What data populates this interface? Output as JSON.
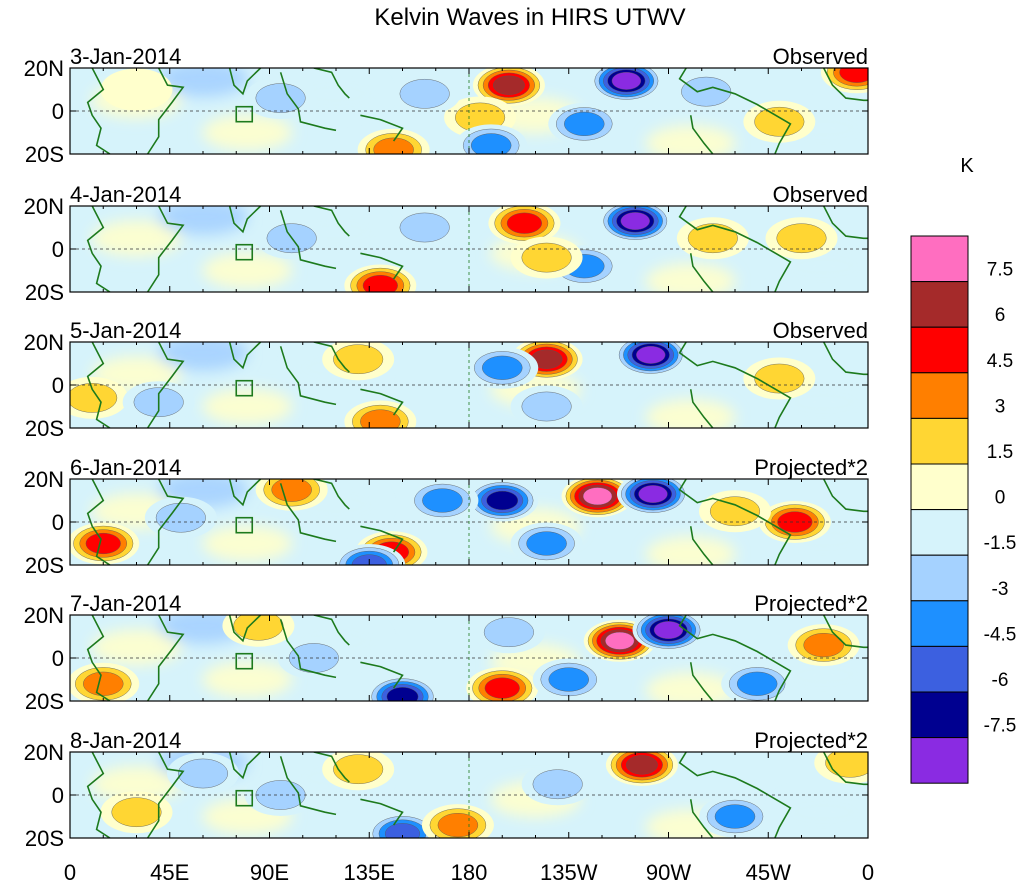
{
  "chart_data": {
    "type": "heatmap",
    "title": "Kelvin Waves in HIRS UTWV",
    "unit": "K",
    "x_ticks": [
      "0",
      "45E",
      "90E",
      "135E",
      "180",
      "135W",
      "90W",
      "45W",
      "0"
    ],
    "x_range_deg_east": [
      0,
      360
    ],
    "y_ticks": [
      "20N",
      "0",
      "20S"
    ],
    "y_range_deg": [
      -20,
      20
    ],
    "colorbar": {
      "labels": [
        "7.5",
        "6",
        "4.5",
        "3",
        "1.5",
        "0",
        "-1.5",
        "-3",
        "-4.5",
        "-6",
        "-7.5"
      ],
      "bin_colors": [
        "#ff6ec0",
        "#a52a2a",
        "#ff0000",
        "#ff7f00",
        "#ffd633",
        "#ffffcc",
        "#d6f3fb",
        "#a5d2ff",
        "#1e90ff",
        "#3c60e0",
        "#000090",
        "#8a2be2"
      ]
    },
    "panels": [
      {
        "date": "3-Jan-2014",
        "kind": "Observed",
        "features": [
          {
            "lon": 198,
            "lat": 12,
            "value": 6.5
          },
          {
            "lon": 251,
            "lat": 14,
            "value": -8
          },
          {
            "lon": 232,
            "lat": -6,
            "value": -4
          },
          {
            "lon": 185,
            "lat": -3,
            "value": 2
          },
          {
            "lon": 146,
            "lat": -18,
            "value": 4
          },
          {
            "lon": 190,
            "lat": -16,
            "value": -4
          },
          {
            "lon": 30,
            "lat": 10,
            "value": 1
          },
          {
            "lon": 95,
            "lat": 6,
            "value": -3
          },
          {
            "lon": 287,
            "lat": 9,
            "value": -3
          },
          {
            "lon": 320,
            "lat": -5,
            "value": 2.5
          },
          {
            "lon": 355,
            "lat": 18,
            "value": 5
          },
          {
            "lon": 160,
            "lat": 8,
            "value": -2
          }
        ]
      },
      {
        "date": "4-Jan-2014",
        "kind": "Observed",
        "features": [
          {
            "lon": 205,
            "lat": 12,
            "value": 6
          },
          {
            "lon": 255,
            "lat": 13,
            "value": -8
          },
          {
            "lon": 140,
            "lat": -17,
            "value": 5
          },
          {
            "lon": 232,
            "lat": -8,
            "value": -3.5
          },
          {
            "lon": 290,
            "lat": 5,
            "value": 2.5
          },
          {
            "lon": 100,
            "lat": 5,
            "value": -2
          },
          {
            "lon": 330,
            "lat": 5,
            "value": 2
          },
          {
            "lon": 160,
            "lat": 10,
            "value": -2.5
          },
          {
            "lon": 215,
            "lat": -4,
            "value": 2
          }
        ]
      },
      {
        "date": "5-Jan-2014",
        "kind": "Observed",
        "features": [
          {
            "lon": 215,
            "lat": 12,
            "value": 6.5
          },
          {
            "lon": 262,
            "lat": 14,
            "value": -8
          },
          {
            "lon": 195,
            "lat": 8,
            "value": -4
          },
          {
            "lon": 140,
            "lat": -17,
            "value": 4
          },
          {
            "lon": 215,
            "lat": -10,
            "value": -3
          },
          {
            "lon": 320,
            "lat": 3,
            "value": 3
          },
          {
            "lon": 10,
            "lat": -6,
            "value": 2
          },
          {
            "lon": 40,
            "lat": -8,
            "value": -2
          },
          {
            "lon": 130,
            "lat": 12,
            "value": 2
          }
        ]
      },
      {
        "date": "6-Jan-2014",
        "kind": "Projected*2",
        "features": [
          {
            "lon": 238,
            "lat": 12,
            "value": 8.5
          },
          {
            "lon": 263,
            "lat": 13,
            "value": -8
          },
          {
            "lon": 195,
            "lat": 10,
            "value": -7
          },
          {
            "lon": 145,
            "lat": -14,
            "value": 5
          },
          {
            "lon": 135,
            "lat": -20,
            "value": -6
          },
          {
            "lon": 15,
            "lat": -10,
            "value": 5
          },
          {
            "lon": 327,
            "lat": 0,
            "value": 5
          },
          {
            "lon": 100,
            "lat": 15,
            "value": 4
          },
          {
            "lon": 50,
            "lat": 2,
            "value": -3
          },
          {
            "lon": 215,
            "lat": -10,
            "value": -4
          },
          {
            "lon": 168,
            "lat": 10,
            "value": -4
          },
          {
            "lon": 300,
            "lat": 5,
            "value": 3
          }
        ]
      },
      {
        "date": "7-Jan-2014",
        "kind": "Projected*2",
        "features": [
          {
            "lon": 248,
            "lat": 8,
            "value": 8.5
          },
          {
            "lon": 270,
            "lat": 13,
            "value": -8
          },
          {
            "lon": 195,
            "lat": -14,
            "value": 6
          },
          {
            "lon": 150,
            "lat": -18,
            "value": -7
          },
          {
            "lon": 15,
            "lat": -12,
            "value": 4
          },
          {
            "lon": 340,
            "lat": 6,
            "value": 4.5
          },
          {
            "lon": 85,
            "lat": 15,
            "value": 3
          },
          {
            "lon": 110,
            "lat": 0,
            "value": -3
          },
          {
            "lon": 225,
            "lat": -10,
            "value": -4
          },
          {
            "lon": 310,
            "lat": -12,
            "value": -3.5
          },
          {
            "lon": 198,
            "lat": 12,
            "value": -2
          }
        ]
      },
      {
        "date": "8-Jan-2014",
        "kind": "Projected*2",
        "features": [
          {
            "lon": 258,
            "lat": 14,
            "value": 6.5
          },
          {
            "lon": 150,
            "lat": -18,
            "value": -5
          },
          {
            "lon": 175,
            "lat": -14,
            "value": 4.5
          },
          {
            "lon": 300,
            "lat": -10,
            "value": -3.5
          },
          {
            "lon": 352,
            "lat": 15,
            "value": 3
          },
          {
            "lon": 60,
            "lat": 10,
            "value": -2
          },
          {
            "lon": 130,
            "lat": 12,
            "value": 2.5
          },
          {
            "lon": 220,
            "lat": 5,
            "value": -3
          },
          {
            "lon": 30,
            "lat": -8,
            "value": 2
          },
          {
            "lon": 95,
            "lat": 0,
            "value": -2
          }
        ]
      }
    ]
  }
}
